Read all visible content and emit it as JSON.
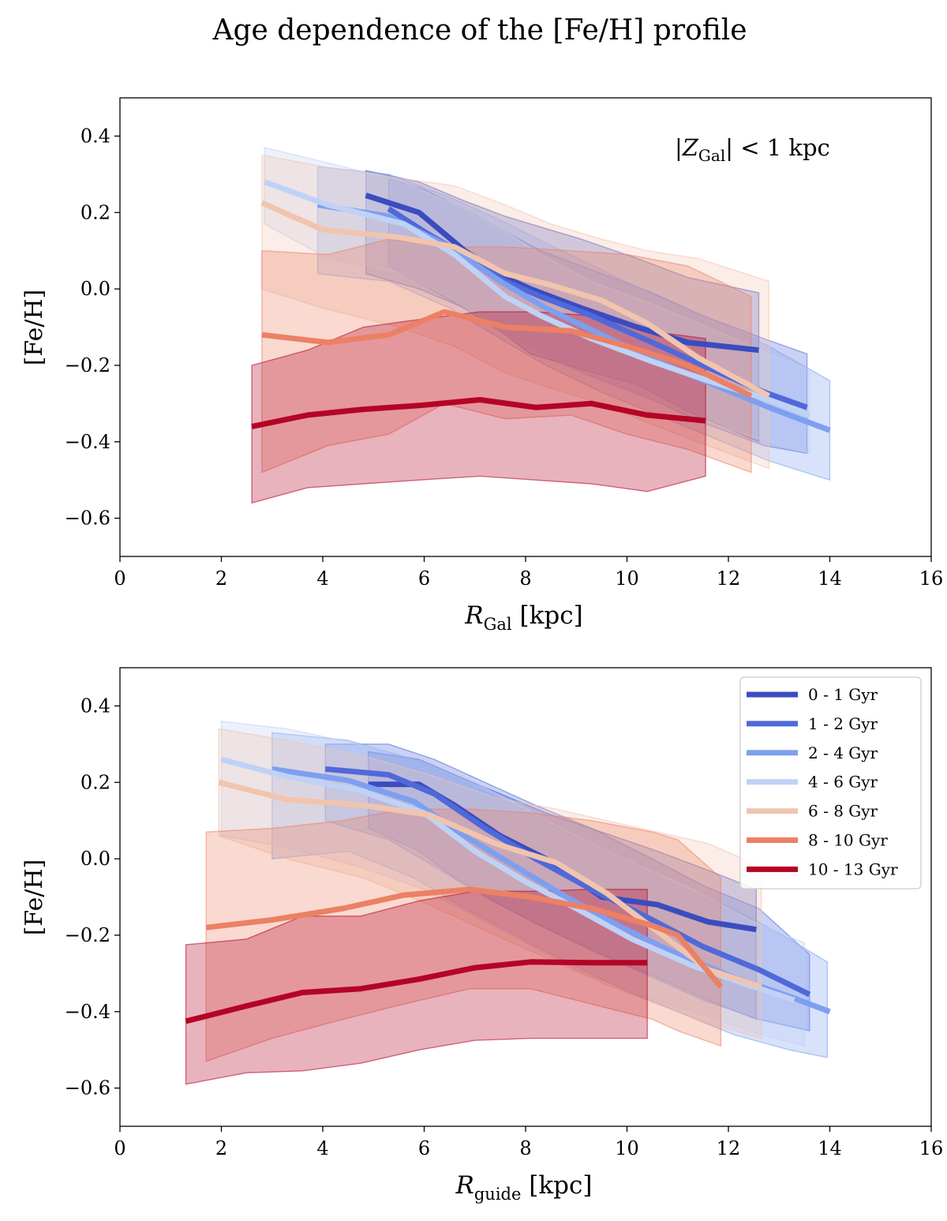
{
  "figure_title": "Age dependence of the [Fe/H] profile",
  "age_bins": [
    "0 - 1 Gyr",
    "1 - 2 Gyr",
    "2 - 4 Gyr",
    "4 - 6 Gyr",
    "6 - 8 Gyr",
    "8 - 10 Gyr",
    "10 - 13 Gyr"
  ],
  "colors": [
    "#3a4cc0",
    "#4f69d9",
    "#7d9ff0",
    "#bfd2f6",
    "#f1c4ae",
    "#ec8064",
    "#b40426"
  ],
  "chart_data": [
    {
      "type": "line",
      "xlabel_main": "R",
      "xlabel_sub": "Gal",
      "xlabel_rest": " [kpc]",
      "ylabel": "[Fe/H]",
      "annotation": {
        "pre": "|Z",
        "sub": "Gal",
        "post": "| < 1 kpc"
      },
      "xlim": [
        0,
        16
      ],
      "ylim": [
        -0.7,
        0.5
      ],
      "xticks": [
        0,
        2,
        4,
        6,
        8,
        10,
        12,
        14,
        16
      ],
      "xtick_labels": [
        "0",
        "2",
        "4",
        "6",
        "8",
        "10",
        "12",
        "14",
        "16"
      ],
      "yticks": [
        -0.6,
        -0.4,
        -0.2,
        0.0,
        0.2,
        0.4
      ],
      "ytick_labels": [
        "−0.6",
        "−0.4",
        "−0.2",
        "0.0",
        "0.2",
        "0.4"
      ],
      "legend": false,
      "series": [
        {
          "name": "0 - 1 Gyr",
          "x": [
            4.85,
            5.9,
            6.8,
            7.6,
            8.1,
            9.1,
            10.2,
            11.2,
            12.6
          ],
          "y": [
            0.245,
            0.2,
            0.1,
            0.03,
            0.0,
            -0.05,
            -0.1,
            -0.14,
            -0.16
          ],
          "x_band": [
            4.85,
            5.9,
            6.8,
            7.6,
            8.1,
            9.1,
            10.2,
            11.2,
            12.6
          ],
          "upper": [
            0.31,
            0.28,
            0.23,
            0.19,
            0.17,
            0.13,
            0.08,
            0.03,
            -0.01
          ],
          "lower": [
            0.04,
            0.0,
            -0.05,
            -0.12,
            -0.17,
            -0.21,
            -0.25,
            -0.32,
            -0.4
          ]
        },
        {
          "name": "1 - 2 Gyr",
          "x": [
            5.3,
            6.0,
            6.9,
            7.6,
            8.3,
            9.3,
            10.5,
            11.5,
            12.7,
            13.55
          ],
          "y": [
            0.21,
            0.15,
            0.08,
            0.02,
            -0.02,
            -0.07,
            -0.14,
            -0.2,
            -0.27,
            -0.31
          ],
          "x_band": [
            5.3,
            6.0,
            6.9,
            7.6,
            8.3,
            9.3,
            10.5,
            11.5,
            12.7,
            13.55
          ],
          "upper": [
            0.29,
            0.26,
            0.2,
            0.15,
            0.1,
            0.05,
            -0.01,
            -0.07,
            -0.13,
            -0.17
          ],
          "lower": [
            0.06,
            0.01,
            -0.06,
            -0.12,
            -0.17,
            -0.23,
            -0.29,
            -0.35,
            -0.41,
            -0.43
          ]
        },
        {
          "name": "2 - 4 Gyr",
          "x": [
            3.9,
            5.3,
            6.5,
            7.5,
            8.4,
            9.5,
            10.6,
            11.7,
            12.8,
            14.0
          ],
          "y": [
            0.22,
            0.19,
            0.11,
            0.02,
            -0.05,
            -0.12,
            -0.19,
            -0.25,
            -0.31,
            -0.37
          ],
          "x_band": [
            3.9,
            5.3,
            6.5,
            7.5,
            8.4,
            9.5,
            10.6,
            11.7,
            12.8,
            14.0
          ],
          "upper": [
            0.32,
            0.3,
            0.24,
            0.18,
            0.12,
            0.05,
            -0.02,
            -0.08,
            -0.15,
            -0.24
          ],
          "lower": [
            0.04,
            0.02,
            -0.05,
            -0.13,
            -0.2,
            -0.27,
            -0.33,
            -0.39,
            -0.45,
            -0.5
          ]
        },
        {
          "name": "4 - 6 Gyr",
          "x": [
            2.85,
            4.1,
            5.6,
            6.6,
            7.6,
            8.3,
            9.3,
            10.5,
            11.6,
            12.8,
            13.6
          ],
          "y": [
            0.28,
            0.22,
            0.17,
            0.09,
            -0.02,
            -0.07,
            -0.13,
            -0.19,
            -0.24,
            -0.29,
            -0.33
          ],
          "x_band": [
            2.85,
            4.1,
            5.6,
            6.6,
            7.6,
            8.3,
            9.3,
            10.5,
            11.6,
            12.8,
            13.6
          ],
          "upper": [
            0.37,
            0.33,
            0.28,
            0.22,
            0.15,
            0.09,
            0.02,
            -0.04,
            -0.1,
            -0.17,
            -0.21
          ],
          "lower": [
            0.17,
            0.08,
            0.04,
            -0.03,
            -0.12,
            -0.17,
            -0.23,
            -0.29,
            -0.35,
            -0.4,
            -0.43
          ]
        },
        {
          "name": "6 - 8 Gyr",
          "x": [
            2.8,
            4.0,
            5.5,
            6.6,
            7.6,
            8.5,
            9.5,
            10.4,
            11.4,
            12.8
          ],
          "y": [
            0.225,
            0.155,
            0.135,
            0.11,
            0.04,
            0.01,
            -0.03,
            -0.09,
            -0.18,
            -0.28
          ],
          "x_band": [
            2.8,
            4.0,
            5.5,
            6.6,
            7.6,
            8.5,
            9.5,
            10.4,
            11.4,
            12.8
          ],
          "upper": [
            0.35,
            0.32,
            0.29,
            0.27,
            0.22,
            0.17,
            0.13,
            0.1,
            0.08,
            0.02
          ],
          "lower": [
            0.0,
            -0.05,
            -0.1,
            -0.15,
            -0.22,
            -0.26,
            -0.3,
            -0.35,
            -0.4,
            -0.47
          ]
        },
        {
          "name": "8 - 10 Gyr",
          "x": [
            2.8,
            4.1,
            5.3,
            6.4,
            7.6,
            8.9,
            10.0,
            11.2,
            12.45
          ],
          "y": [
            -0.12,
            -0.14,
            -0.12,
            -0.06,
            -0.1,
            -0.11,
            -0.15,
            -0.2,
            -0.28
          ],
          "x_band": [
            2.8,
            4.1,
            5.3,
            6.4,
            7.6,
            8.9,
            10.0,
            11.2,
            12.45
          ],
          "upper": [
            0.1,
            0.09,
            0.13,
            0.11,
            0.11,
            0.1,
            0.09,
            0.06,
            -0.02
          ],
          "lower": [
            -0.48,
            -0.41,
            -0.38,
            -0.3,
            -0.34,
            -0.33,
            -0.38,
            -0.42,
            -0.48
          ]
        },
        {
          "name": "10 - 13 Gyr",
          "x": [
            2.6,
            3.7,
            4.8,
            5.9,
            7.1,
            8.2,
            9.3,
            10.4,
            11.55
          ],
          "y": [
            -0.36,
            -0.33,
            -0.315,
            -0.305,
            -0.29,
            -0.31,
            -0.3,
            -0.33,
            -0.345
          ],
          "x_band": [
            2.6,
            3.7,
            4.8,
            5.9,
            7.1,
            8.2,
            9.3,
            10.4,
            11.55
          ],
          "upper": [
            -0.2,
            -0.16,
            -0.1,
            -0.08,
            -0.06,
            -0.06,
            -0.07,
            -0.11,
            -0.13
          ],
          "lower": [
            -0.56,
            -0.52,
            -0.51,
            -0.5,
            -0.49,
            -0.5,
            -0.51,
            -0.53,
            -0.49
          ]
        }
      ]
    },
    {
      "type": "line",
      "xlabel_main": "R",
      "xlabel_sub": "guide",
      "xlabel_rest": " [kpc]",
      "ylabel": "[Fe/H]",
      "xlim": [
        0,
        16
      ],
      "ylim": [
        -0.7,
        0.5
      ],
      "xticks": [
        0,
        2,
        4,
        6,
        8,
        10,
        12,
        14,
        16
      ],
      "xtick_labels": [
        "0",
        "2",
        "4",
        "6",
        "8",
        "10",
        "12",
        "14",
        "16"
      ],
      "yticks": [
        -0.6,
        -0.4,
        -0.2,
        0.0,
        0.2,
        0.4
      ],
      "ytick_labels": [
        "−0.6",
        "−0.4",
        "−0.2",
        "0.0",
        "0.2",
        "0.4"
      ],
      "legend": true,
      "legend_location": "top-right",
      "series": [
        {
          "name": "0 - 1 Gyr",
          "x": [
            4.9,
            5.9,
            6.6,
            7.5,
            8.4,
            9.5,
            10.6,
            11.6,
            12.55
          ],
          "y": [
            0.195,
            0.195,
            0.14,
            0.06,
            0.0,
            -0.1,
            -0.12,
            -0.165,
            -0.185
          ],
          "x_band": [
            4.9,
            5.9,
            6.6,
            7.5,
            8.4,
            9.5,
            10.6,
            11.6,
            12.55
          ],
          "upper": [
            0.28,
            0.26,
            0.22,
            0.17,
            0.12,
            0.07,
            0.02,
            -0.03,
            -0.08
          ],
          "lower": [
            0.08,
            0.02,
            -0.05,
            -0.12,
            -0.18,
            -0.25,
            -0.31,
            -0.37,
            -0.42
          ]
        },
        {
          "name": "1 - 2 Gyr",
          "x": [
            4.05,
            5.3,
            6.2,
            7.2,
            8.2,
            9.3,
            10.5,
            11.5,
            12.6,
            13.6
          ],
          "y": [
            0.235,
            0.22,
            0.17,
            0.08,
            0.0,
            -0.08,
            -0.16,
            -0.23,
            -0.29,
            -0.355
          ],
          "x_band": [
            4.05,
            5.3,
            6.2,
            7.2,
            8.2,
            9.3,
            10.5,
            11.5,
            12.6,
            13.6
          ],
          "upper": [
            0.3,
            0.3,
            0.26,
            0.2,
            0.14,
            0.08,
            0.0,
            -0.07,
            -0.13,
            -0.25
          ],
          "lower": [
            0.1,
            0.05,
            -0.02,
            -0.1,
            -0.17,
            -0.24,
            -0.31,
            -0.37,
            -0.42,
            -0.45
          ]
        },
        {
          "name": "2 - 4 Gyr",
          "x": [
            3.0,
            4.5,
            5.8,
            6.8,
            7.8,
            8.8,
            9.9,
            11.0,
            12.1,
            13.2,
            14.0
          ],
          "y": [
            0.235,
            0.205,
            0.15,
            0.06,
            -0.02,
            -0.1,
            -0.18,
            -0.25,
            -0.31,
            -0.36,
            -0.4
          ],
          "x_band": [
            3.0,
            4.5,
            5.8,
            6.8,
            7.8,
            8.8,
            9.9,
            11.0,
            12.1,
            13.2,
            13.95
          ],
          "upper": [
            0.33,
            0.31,
            0.26,
            0.2,
            0.14,
            0.07,
            0.0,
            -0.07,
            -0.13,
            -0.21,
            -0.27
          ],
          "lower": [
            0.0,
            0.02,
            -0.05,
            -0.13,
            -0.2,
            -0.27,
            -0.34,
            -0.4,
            -0.46,
            -0.5,
            -0.52
          ]
        },
        {
          "name": "4 - 6 Gyr",
          "x": [
            2.0,
            3.3,
            4.7,
            6.0,
            7.0,
            8.0,
            9.0,
            10.1,
            11.3,
            12.4,
            13.3
          ],
          "y": [
            0.26,
            0.215,
            0.18,
            0.12,
            0.02,
            -0.06,
            -0.13,
            -0.21,
            -0.28,
            -0.33,
            -0.37
          ],
          "x_band": [
            2.0,
            3.3,
            4.7,
            6.0,
            7.0,
            8.0,
            9.0,
            10.1,
            11.3,
            12.4,
            13.5
          ],
          "upper": [
            0.36,
            0.34,
            0.3,
            0.26,
            0.2,
            0.13,
            0.06,
            -0.01,
            -0.08,
            -0.16,
            -0.22
          ],
          "lower": [
            0.06,
            0.03,
            -0.02,
            -0.08,
            -0.15,
            -0.22,
            -0.29,
            -0.35,
            -0.4,
            -0.45,
            -0.49
          ]
        },
        {
          "name": "6 - 8 Gyr",
          "x": [
            1.95,
            3.3,
            4.8,
            6.1,
            7.4,
            8.6,
            9.6,
            10.6,
            11.6,
            12.65
          ],
          "y": [
            0.2,
            0.155,
            0.14,
            0.115,
            0.04,
            -0.01,
            -0.09,
            -0.19,
            -0.29,
            -0.335
          ],
          "x_band": [
            1.95,
            3.3,
            4.8,
            6.1,
            7.4,
            8.6,
            9.6,
            10.6,
            11.6,
            12.65
          ],
          "upper": [
            0.34,
            0.31,
            0.27,
            0.22,
            0.16,
            0.13,
            0.1,
            0.07,
            0.04,
            -0.02
          ],
          "lower": [
            0.06,
            0.0,
            -0.05,
            -0.12,
            -0.2,
            -0.27,
            -0.33,
            -0.38,
            -0.43,
            -0.47
          ]
        },
        {
          "name": "8 - 10 Gyr",
          "x": [
            1.7,
            3.0,
            4.4,
            5.6,
            6.9,
            8.1,
            9.3,
            10.5,
            11.0,
            11.85
          ],
          "y": [
            -0.18,
            -0.16,
            -0.13,
            -0.095,
            -0.08,
            -0.1,
            -0.13,
            -0.175,
            -0.2,
            -0.335
          ],
          "x_band": [
            1.7,
            3.0,
            4.4,
            5.6,
            6.9,
            8.1,
            9.3,
            10.5,
            11.0,
            11.85
          ],
          "upper": [
            0.07,
            0.08,
            0.1,
            0.13,
            0.13,
            0.12,
            0.1,
            0.07,
            0.05,
            -0.05
          ],
          "lower": [
            -0.53,
            -0.47,
            -0.42,
            -0.38,
            -0.34,
            -0.34,
            -0.38,
            -0.42,
            -0.45,
            -0.49
          ]
        },
        {
          "name": "10 - 13 Gyr",
          "x": [
            1.3,
            2.5,
            3.6,
            4.75,
            5.9,
            7.0,
            8.1,
            9.3,
            10.4
          ],
          "y": [
            -0.425,
            -0.385,
            -0.35,
            -0.34,
            -0.315,
            -0.285,
            -0.27,
            -0.272,
            -0.272
          ],
          "x_band": [
            1.3,
            2.5,
            3.6,
            4.75,
            5.9,
            7.0,
            8.1,
            9.3,
            10.4
          ],
          "upper": [
            -0.225,
            -0.21,
            -0.15,
            -0.15,
            -0.11,
            -0.085,
            -0.085,
            -0.08,
            -0.08
          ],
          "lower": [
            -0.59,
            -0.56,
            -0.555,
            -0.535,
            -0.5,
            -0.475,
            -0.47,
            -0.47,
            -0.47
          ]
        }
      ]
    }
  ]
}
